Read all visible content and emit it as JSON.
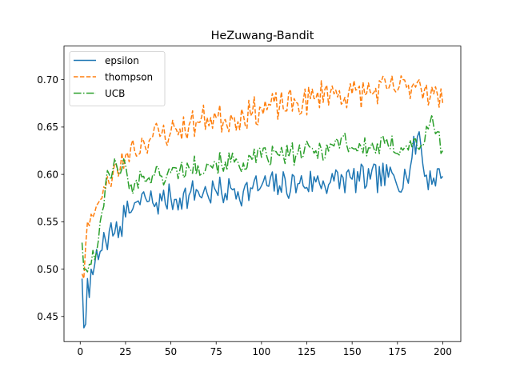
{
  "chart_data": {
    "type": "line",
    "title": "HeZuwang-Bandit",
    "xlabel": "",
    "ylabel": "",
    "xlim": [
      -8.95,
      209.95
    ],
    "ylim": [
      0.4235,
      0.7355
    ],
    "xticks": [
      0,
      25,
      50,
      75,
      100,
      125,
      150,
      175,
      200
    ],
    "yticks": [
      0.45,
      0.5,
      0.55,
      0.6,
      0.65,
      0.7
    ],
    "ytick_labels": [
      "0.45",
      "0.50",
      "0.55",
      "0.60",
      "0.65",
      "0.70"
    ],
    "grid": false,
    "legend_position": "upper left",
    "series": [
      {
        "name": "epsilon",
        "color": "#1f77b4",
        "style": "solid",
        "anchors": [
          [
            1,
            0.49
          ],
          [
            2,
            0.438
          ],
          [
            3,
            0.442
          ],
          [
            4,
            0.49
          ],
          [
            5,
            0.47
          ],
          [
            6,
            0.5
          ],
          [
            8,
            0.505
          ],
          [
            10,
            0.51
          ],
          [
            12,
            0.52
          ],
          [
            14,
            0.53
          ],
          [
            16,
            0.54
          ],
          [
            18,
            0.535
          ],
          [
            20,
            0.55
          ],
          [
            22,
            0.545
          ],
          [
            25,
            0.555
          ],
          [
            28,
            0.56
          ],
          [
            30,
            0.57
          ],
          [
            33,
            0.568
          ],
          [
            36,
            0.575
          ],
          [
            40,
            0.57
          ],
          [
            45,
            0.572
          ],
          [
            50,
            0.575
          ],
          [
            55,
            0.575
          ],
          [
            60,
            0.578
          ],
          [
            65,
            0.582
          ],
          [
            70,
            0.58
          ],
          [
            75,
            0.582
          ],
          [
            80,
            0.58
          ],
          [
            85,
            0.585
          ],
          [
            90,
            0.582
          ],
          [
            95,
            0.585
          ],
          [
            100,
            0.588
          ],
          [
            110,
            0.588
          ],
          [
            120,
            0.59
          ],
          [
            130,
            0.592
          ],
          [
            140,
            0.593
          ],
          [
            150,
            0.595
          ],
          [
            160,
            0.595
          ],
          [
            170,
            0.597
          ],
          [
            180,
            0.597
          ],
          [
            187,
            0.645
          ],
          [
            190,
            0.598
          ],
          [
            200,
            0.598
          ]
        ],
        "noise": 0.016,
        "seed": 7
      },
      {
        "name": "thompson",
        "color": "#ff7f0e",
        "style": "dashed",
        "anchors": [
          [
            1,
            0.495
          ],
          [
            2,
            0.49
          ],
          [
            3,
            0.525
          ],
          [
            4,
            0.55
          ],
          [
            6,
            0.558
          ],
          [
            8,
            0.56
          ],
          [
            10,
            0.57
          ],
          [
            12,
            0.575
          ],
          [
            14,
            0.585
          ],
          [
            16,
            0.59
          ],
          [
            18,
            0.6
          ],
          [
            20,
            0.61
          ],
          [
            22,
            0.605
          ],
          [
            25,
            0.62
          ],
          [
            28,
            0.63
          ],
          [
            30,
            0.625
          ],
          [
            35,
            0.635
          ],
          [
            40,
            0.64
          ],
          [
            45,
            0.643
          ],
          [
            50,
            0.645
          ],
          [
            55,
            0.648
          ],
          [
            60,
            0.652
          ],
          [
            65,
            0.655
          ],
          [
            70,
            0.66
          ],
          [
            75,
            0.66
          ],
          [
            80,
            0.658
          ],
          [
            85,
            0.66
          ],
          [
            90,
            0.663
          ],
          [
            95,
            0.665
          ],
          [
            100,
            0.67
          ],
          [
            110,
            0.672
          ],
          [
            120,
            0.675
          ],
          [
            130,
            0.68
          ],
          [
            135,
            0.69
          ],
          [
            140,
            0.685
          ],
          [
            150,
            0.685
          ],
          [
            160,
            0.687
          ],
          [
            170,
            0.69
          ],
          [
            180,
            0.692
          ],
          [
            187,
            0.7
          ],
          [
            190,
            0.69
          ],
          [
            195,
            0.685
          ],
          [
            200,
            0.675
          ]
        ],
        "noise": 0.016,
        "seed": 23
      },
      {
        "name": "UCB",
        "color": "#2ca02c",
        "style": "dashdot",
        "anchors": [
          [
            1,
            0.528
          ],
          [
            2,
            0.5
          ],
          [
            3,
            0.5
          ],
          [
            5,
            0.505
          ],
          [
            8,
            0.51
          ],
          [
            10,
            0.53
          ],
          [
            12,
            0.56
          ],
          [
            14,
            0.59
          ],
          [
            16,
            0.6
          ],
          [
            18,
            0.605
          ],
          [
            20,
            0.61
          ],
          [
            22,
            0.6
          ],
          [
            25,
            0.61
          ],
          [
            28,
            0.59
          ],
          [
            30,
            0.59
          ],
          [
            35,
            0.598
          ],
          [
            40,
            0.6
          ],
          [
            45,
            0.598
          ],
          [
            50,
            0.602
          ],
          [
            55,
            0.605
          ],
          [
            60,
            0.607
          ],
          [
            65,
            0.61
          ],
          [
            70,
            0.612
          ],
          [
            75,
            0.612
          ],
          [
            80,
            0.613
          ],
          [
            85,
            0.613
          ],
          [
            90,
            0.612
          ],
          [
            95,
            0.615
          ],
          [
            100,
            0.618
          ],
          [
            110,
            0.62
          ],
          [
            120,
            0.622
          ],
          [
            130,
            0.625
          ],
          [
            140,
            0.63
          ],
          [
            145,
            0.64
          ],
          [
            150,
            0.628
          ],
          [
            160,
            0.628
          ],
          [
            170,
            0.63
          ],
          [
            180,
            0.63
          ],
          [
            190,
            0.635
          ],
          [
            193,
            0.655
          ],
          [
            197,
            0.645
          ],
          [
            200,
            0.625
          ]
        ],
        "noise": 0.012,
        "seed": 101
      }
    ]
  }
}
